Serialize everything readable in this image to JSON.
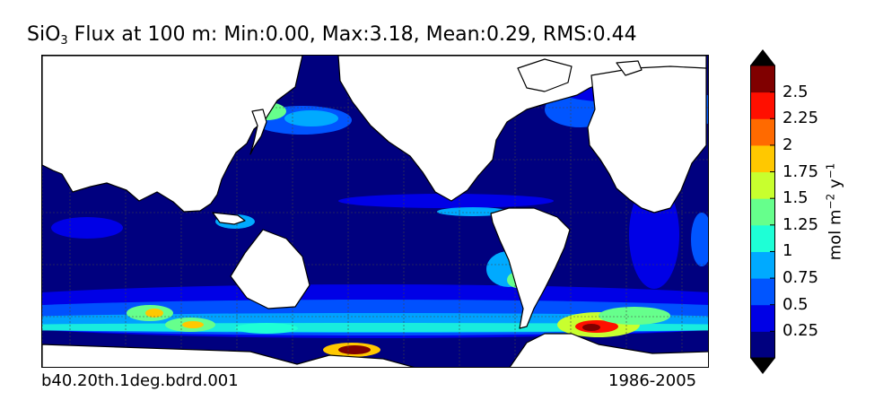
{
  "title": {
    "prefix": "SiO",
    "subscript": "3",
    "rest": " Flux at 100 m: Min:0.00, Max:3.18, Mean:0.29, RMS:0.44"
  },
  "footer": {
    "case_name": "b40.20th.1deg.bdrd.001",
    "period": "1986-2005"
  },
  "chart_data": {
    "type": "heatmap",
    "title": "SiO3 Flux at 100 m: Min:0.00, Max:3.18, Mean:0.29, RMS:0.44",
    "stats": {
      "min": 0.0,
      "max": 3.18,
      "mean": 0.29,
      "rms": 0.44
    },
    "colorbar": {
      "label": "mol m-2 y-1",
      "unit_base": "mol m",
      "exp1": "−2",
      "unit_mid": " y",
      "exp2": "−1",
      "levels": [
        0,
        0.25,
        0.5,
        0.75,
        1,
        1.25,
        1.5,
        1.75,
        2,
        2.25,
        2.5,
        2.75
      ],
      "tick_labels": [
        "0.25",
        "0.5",
        "0.75",
        "1",
        "1.25",
        "1.5",
        "1.75",
        "2",
        "2.25",
        "2.5"
      ],
      "colors": [
        "#00007f",
        "#0000e6",
        "#0055ff",
        "#00aaff",
        "#1effd6",
        "#66ff8c",
        "#c8ff2e",
        "#ffc800",
        "#ff6a00",
        "#ff0f00",
        "#800000"
      ],
      "extend": "both"
    },
    "map": {
      "projection": "cylindrical",
      "land_color": "#ffffff",
      "ocean_background_color": "#00007f",
      "grid": true
    }
  }
}
